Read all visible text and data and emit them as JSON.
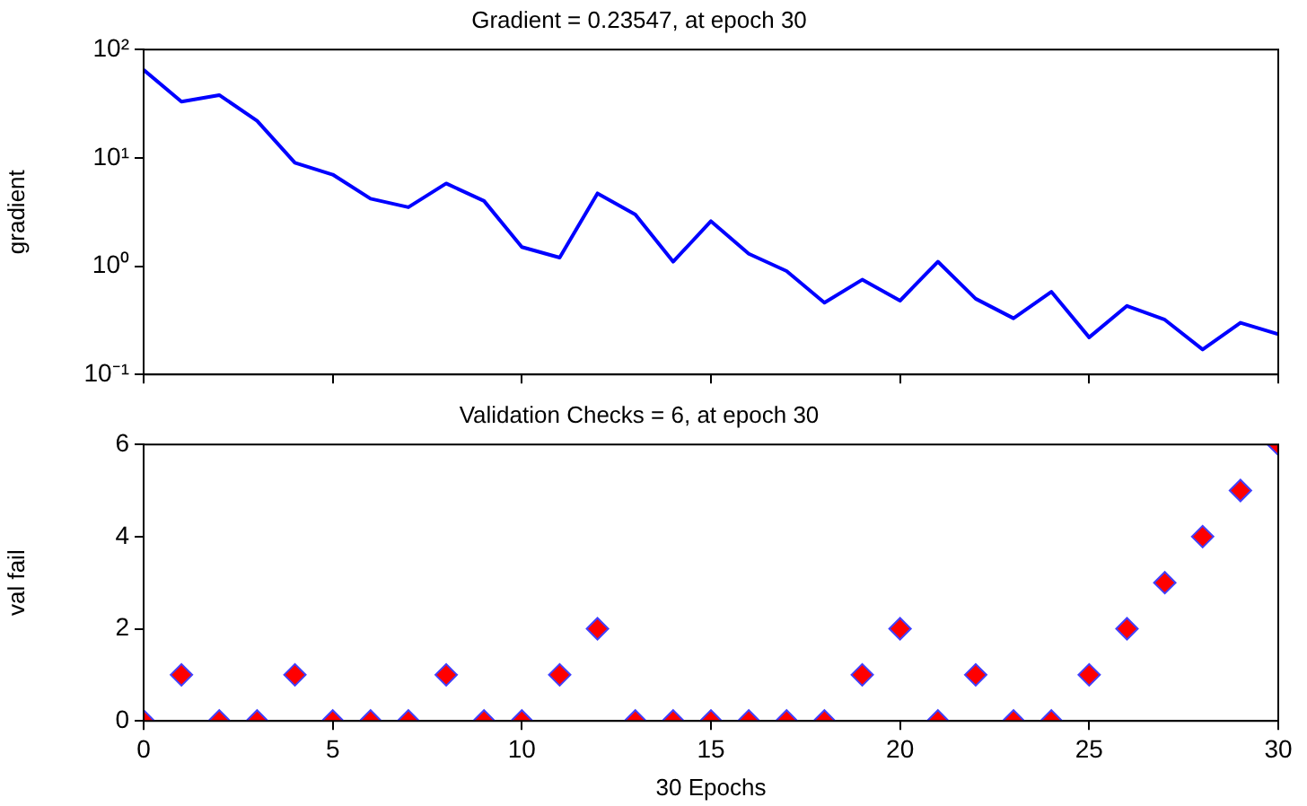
{
  "chart_data": [
    {
      "type": "line",
      "title": "Gradient = 0.23547, at epoch 30",
      "ylabel": "gradient",
      "x": [
        0,
        1,
        2,
        3,
        4,
        5,
        6,
        7,
        8,
        9,
        10,
        11,
        12,
        13,
        14,
        15,
        16,
        17,
        18,
        19,
        20,
        21,
        22,
        23,
        24,
        25,
        26,
        27,
        28,
        29,
        30
      ],
      "series": [
        {
          "color": "#0000ff",
          "values": [
            65,
            33,
            38,
            22,
            9,
            7,
            4.2,
            3.5,
            5.8,
            4,
            1.5,
            1.2,
            4.7,
            3,
            1.1,
            2.6,
            1.3,
            0.9,
            0.46,
            0.75,
            0.48,
            1.1,
            0.5,
            0.33,
            0.58,
            0.22,
            0.43,
            0.32,
            0.17,
            0.3,
            0.235
          ]
        }
      ],
      "xlim": [
        0,
        30
      ],
      "xticks": [
        0,
        5,
        10,
        15,
        20,
        25,
        30
      ],
      "ylim": [
        0.1,
        100
      ],
      "yticks": [
        {
          "value": 0.1,
          "label": "10⁻¹"
        },
        {
          "value": 1,
          "label": "10⁰"
        },
        {
          "value": 10,
          "label": "10¹"
        },
        {
          "value": 100,
          "label": "10²"
        }
      ],
      "log": "y",
      "tick_labels": "y",
      "grid": false,
      "legend": false,
      "marker": "none",
      "line_style": "solid"
    },
    {
      "type": "scatter",
      "title": "Validation Checks = 6, at epoch 30",
      "xlabel": "30 Epochs",
      "ylabel": "val fail",
      "x": [
        0,
        1,
        2,
        3,
        4,
        5,
        6,
        7,
        8,
        9,
        10,
        11,
        12,
        13,
        14,
        15,
        16,
        17,
        18,
        19,
        20,
        21,
        22,
        23,
        24,
        25,
        26,
        27,
        28,
        29,
        30
      ],
      "series": [
        {
          "color": "#ff0000",
          "values": [
            0,
            1,
            0,
            0,
            1,
            0,
            0,
            0,
            1,
            0,
            0,
            1,
            2,
            0,
            0,
            0,
            0,
            0,
            0,
            1,
            2,
            0,
            1,
            0,
            0,
            1,
            2,
            3,
            4,
            5,
            6
          ]
        }
      ],
      "xlim": [
        0,
        30
      ],
      "xticks": [
        0,
        5,
        10,
        15,
        20,
        25,
        30
      ],
      "ylim": [
        0,
        6
      ],
      "yticks": [
        0,
        2,
        4,
        6
      ],
      "grid": false,
      "legend": false,
      "marker": "diamond"
    }
  ]
}
